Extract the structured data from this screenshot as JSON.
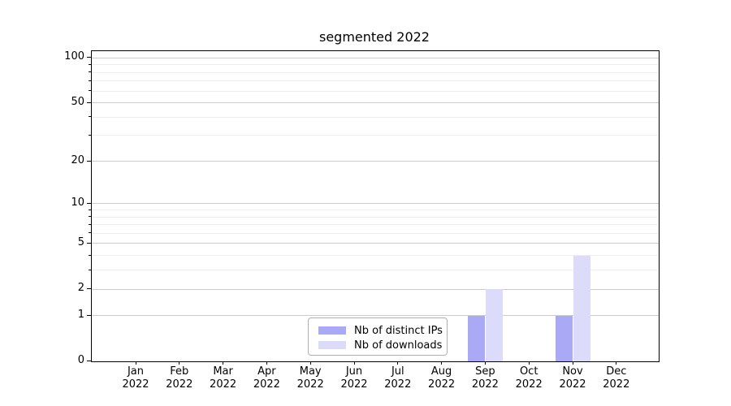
{
  "chart_data": {
    "type": "bar",
    "title": "segmented 2022",
    "categories": [
      "Jan 2022",
      "Feb 2022",
      "Mar 2022",
      "Apr 2022",
      "May 2022",
      "Jun 2022",
      "Jul 2022",
      "Aug 2022",
      "Sep 2022",
      "Oct 2022",
      "Nov 2022",
      "Dec 2022"
    ],
    "x_tick_month": [
      "Jan",
      "Feb",
      "Mar",
      "Apr",
      "May",
      "Jun",
      "Jul",
      "Aug",
      "Sep",
      "Oct",
      "Nov",
      "Dec"
    ],
    "x_tick_year": "2022",
    "series": [
      {
        "name": "Nb of distinct IPs",
        "color": "#a9a9f6",
        "values": [
          0,
          0,
          0,
          0,
          0,
          0,
          0,
          0,
          1,
          0,
          1,
          0
        ]
      },
      {
        "name": "Nb of downloads",
        "color": "#dcdcfa",
        "values": [
          0,
          0,
          0,
          0,
          0,
          0,
          0,
          0,
          2,
          0,
          4,
          0
        ]
      }
    ],
    "y_axis": {
      "scale": "log1p",
      "major_ticks": [
        0,
        1,
        2,
        5,
        10,
        20,
        50,
        100
      ],
      "minor_ticks": [
        3,
        4,
        6,
        7,
        8,
        9,
        30,
        40,
        60,
        70,
        80,
        90
      ],
      "ylim": [
        0,
        111
      ]
    },
    "grid": true,
    "legend_position": "lower center",
    "colors": {
      "grid_major": "#cccccc",
      "grid_minor": "#eeeeee",
      "spine": "#000000",
      "text": "#000000"
    }
  }
}
